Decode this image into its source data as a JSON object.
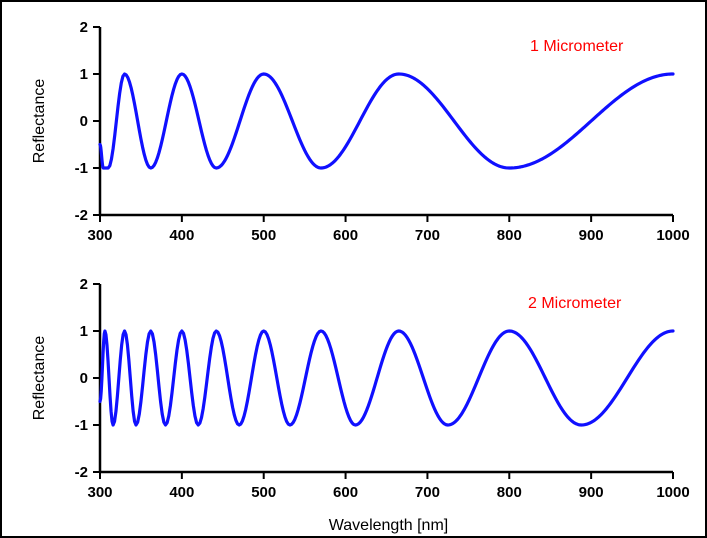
{
  "colors": {
    "series": "#1010ff",
    "annotation": "#ff0000",
    "axis": "#000000"
  },
  "chart_data": [
    {
      "type": "line",
      "title": "",
      "annotation": "1 Micrometer",
      "xlabel": "",
      "ylabel": "Reflectance",
      "xlim": [
        300,
        1000
      ],
      "ylim": [
        -2,
        2
      ],
      "xticks": [
        "300",
        "400",
        "500",
        "600",
        "700",
        "800",
        "900",
        "1000"
      ],
      "yticks": [
        "-2",
        "-1",
        "0",
        "1",
        "2"
      ],
      "grid": false,
      "series": [
        {
          "x": [
            300,
            304,
            310,
            330,
            362,
            400,
            442,
            500,
            570,
            665,
            800,
            1000
          ],
          "y": [
            -0.5,
            -1,
            -1,
            1,
            -1,
            1,
            -1,
            1,
            -1,
            1,
            -1,
            1
          ]
        }
      ]
    },
    {
      "type": "line",
      "title": "",
      "annotation": "2 Micrometer",
      "xlabel": "Wavelength [nm]",
      "ylabel": "Reflectance",
      "xlim": [
        300,
        1000
      ],
      "ylim": [
        -2,
        2
      ],
      "xticks": [
        "300",
        "400",
        "500",
        "600",
        "700",
        "800",
        "900",
        "1000"
      ],
      "yticks": [
        "-2",
        "-1",
        "0",
        "1",
        "2"
      ],
      "grid": false,
      "series": [
        {
          "x": [
            300,
            306,
            316,
            330,
            344,
            362,
            380,
            400,
            420,
            442,
            470,
            500,
            532,
            570,
            612,
            665,
            725,
            800,
            888,
            1000
          ],
          "y": [
            -0.5,
            1,
            -1,
            1,
            -1,
            1,
            -1,
            1,
            -1,
            1,
            -1,
            1,
            -1,
            1,
            -1,
            1,
            -1,
            1,
            -1,
            1
          ]
        }
      ]
    }
  ]
}
